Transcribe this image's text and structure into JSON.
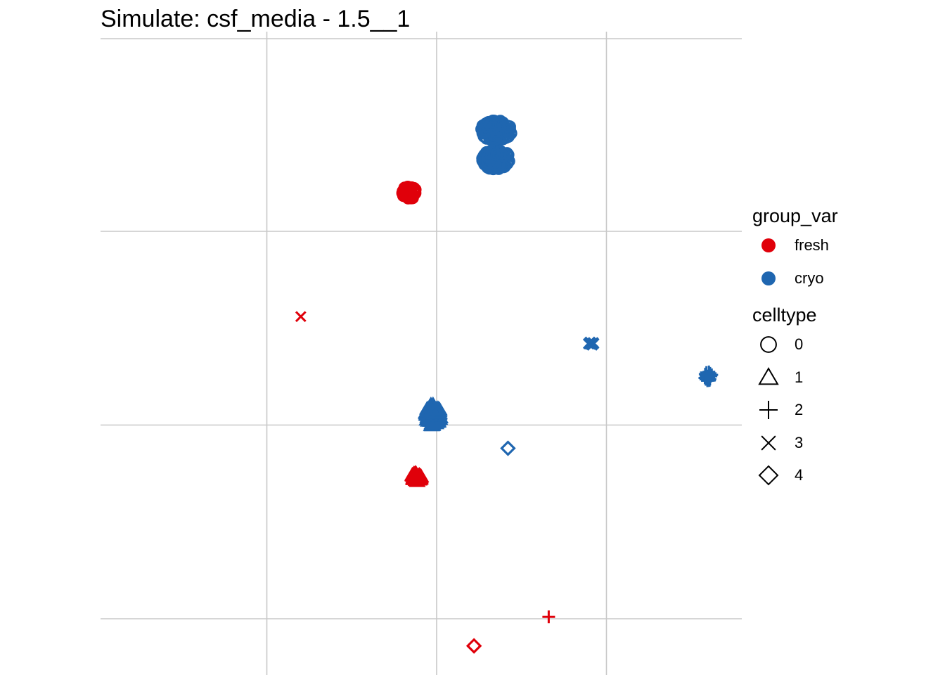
{
  "chart_data": {
    "type": "scatter",
    "title": "Simulate: csf_media - 1.5__1",
    "xlabel": "",
    "ylabel": "",
    "grid": true,
    "legend_placement": "right",
    "color_legend": {
      "title": "group_var",
      "entries": [
        {
          "label": "fresh",
          "color": "#e0000a"
        },
        {
          "label": "cryo",
          "color": "#1f66b0"
        }
      ]
    },
    "shape_legend": {
      "title": "celltype",
      "entries": [
        {
          "label": "0",
          "shape": "circle"
        },
        {
          "label": "1",
          "shape": "triangle"
        },
        {
          "label": "2",
          "shape": "plus"
        },
        {
          "label": "3",
          "shape": "cross"
        },
        {
          "label": "4",
          "shape": "diamond"
        }
      ]
    },
    "clusters": [
      {
        "group": "fresh",
        "celltype": "0",
        "x": -0.16,
        "y": 1.2
      },
      {
        "group": "cryo",
        "celltype": "0",
        "x": 0.35,
        "y": 1.52
      },
      {
        "group": "cryo",
        "celltype": "0",
        "x": 0.35,
        "y": 1.37
      },
      {
        "group": "fresh",
        "celltype": "3",
        "x": -0.8,
        "y": 0.56
      },
      {
        "group": "cryo",
        "celltype": "3",
        "x": 0.91,
        "y": 0.42
      },
      {
        "group": "cryo",
        "celltype": "1",
        "x": -0.02,
        "y": 0.05
      },
      {
        "group": "cryo",
        "celltype": "2",
        "x": 1.6,
        "y": 0.25
      },
      {
        "group": "cryo",
        "celltype": "4",
        "x": 0.42,
        "y": -0.12
      },
      {
        "group": "fresh",
        "celltype": "1",
        "x": -0.12,
        "y": -0.27
      },
      {
        "group": "fresh",
        "celltype": "2",
        "x": 0.66,
        "y": -0.99
      },
      {
        "group": "fresh",
        "celltype": "4",
        "x": 0.22,
        "y": -1.14
      }
    ]
  }
}
